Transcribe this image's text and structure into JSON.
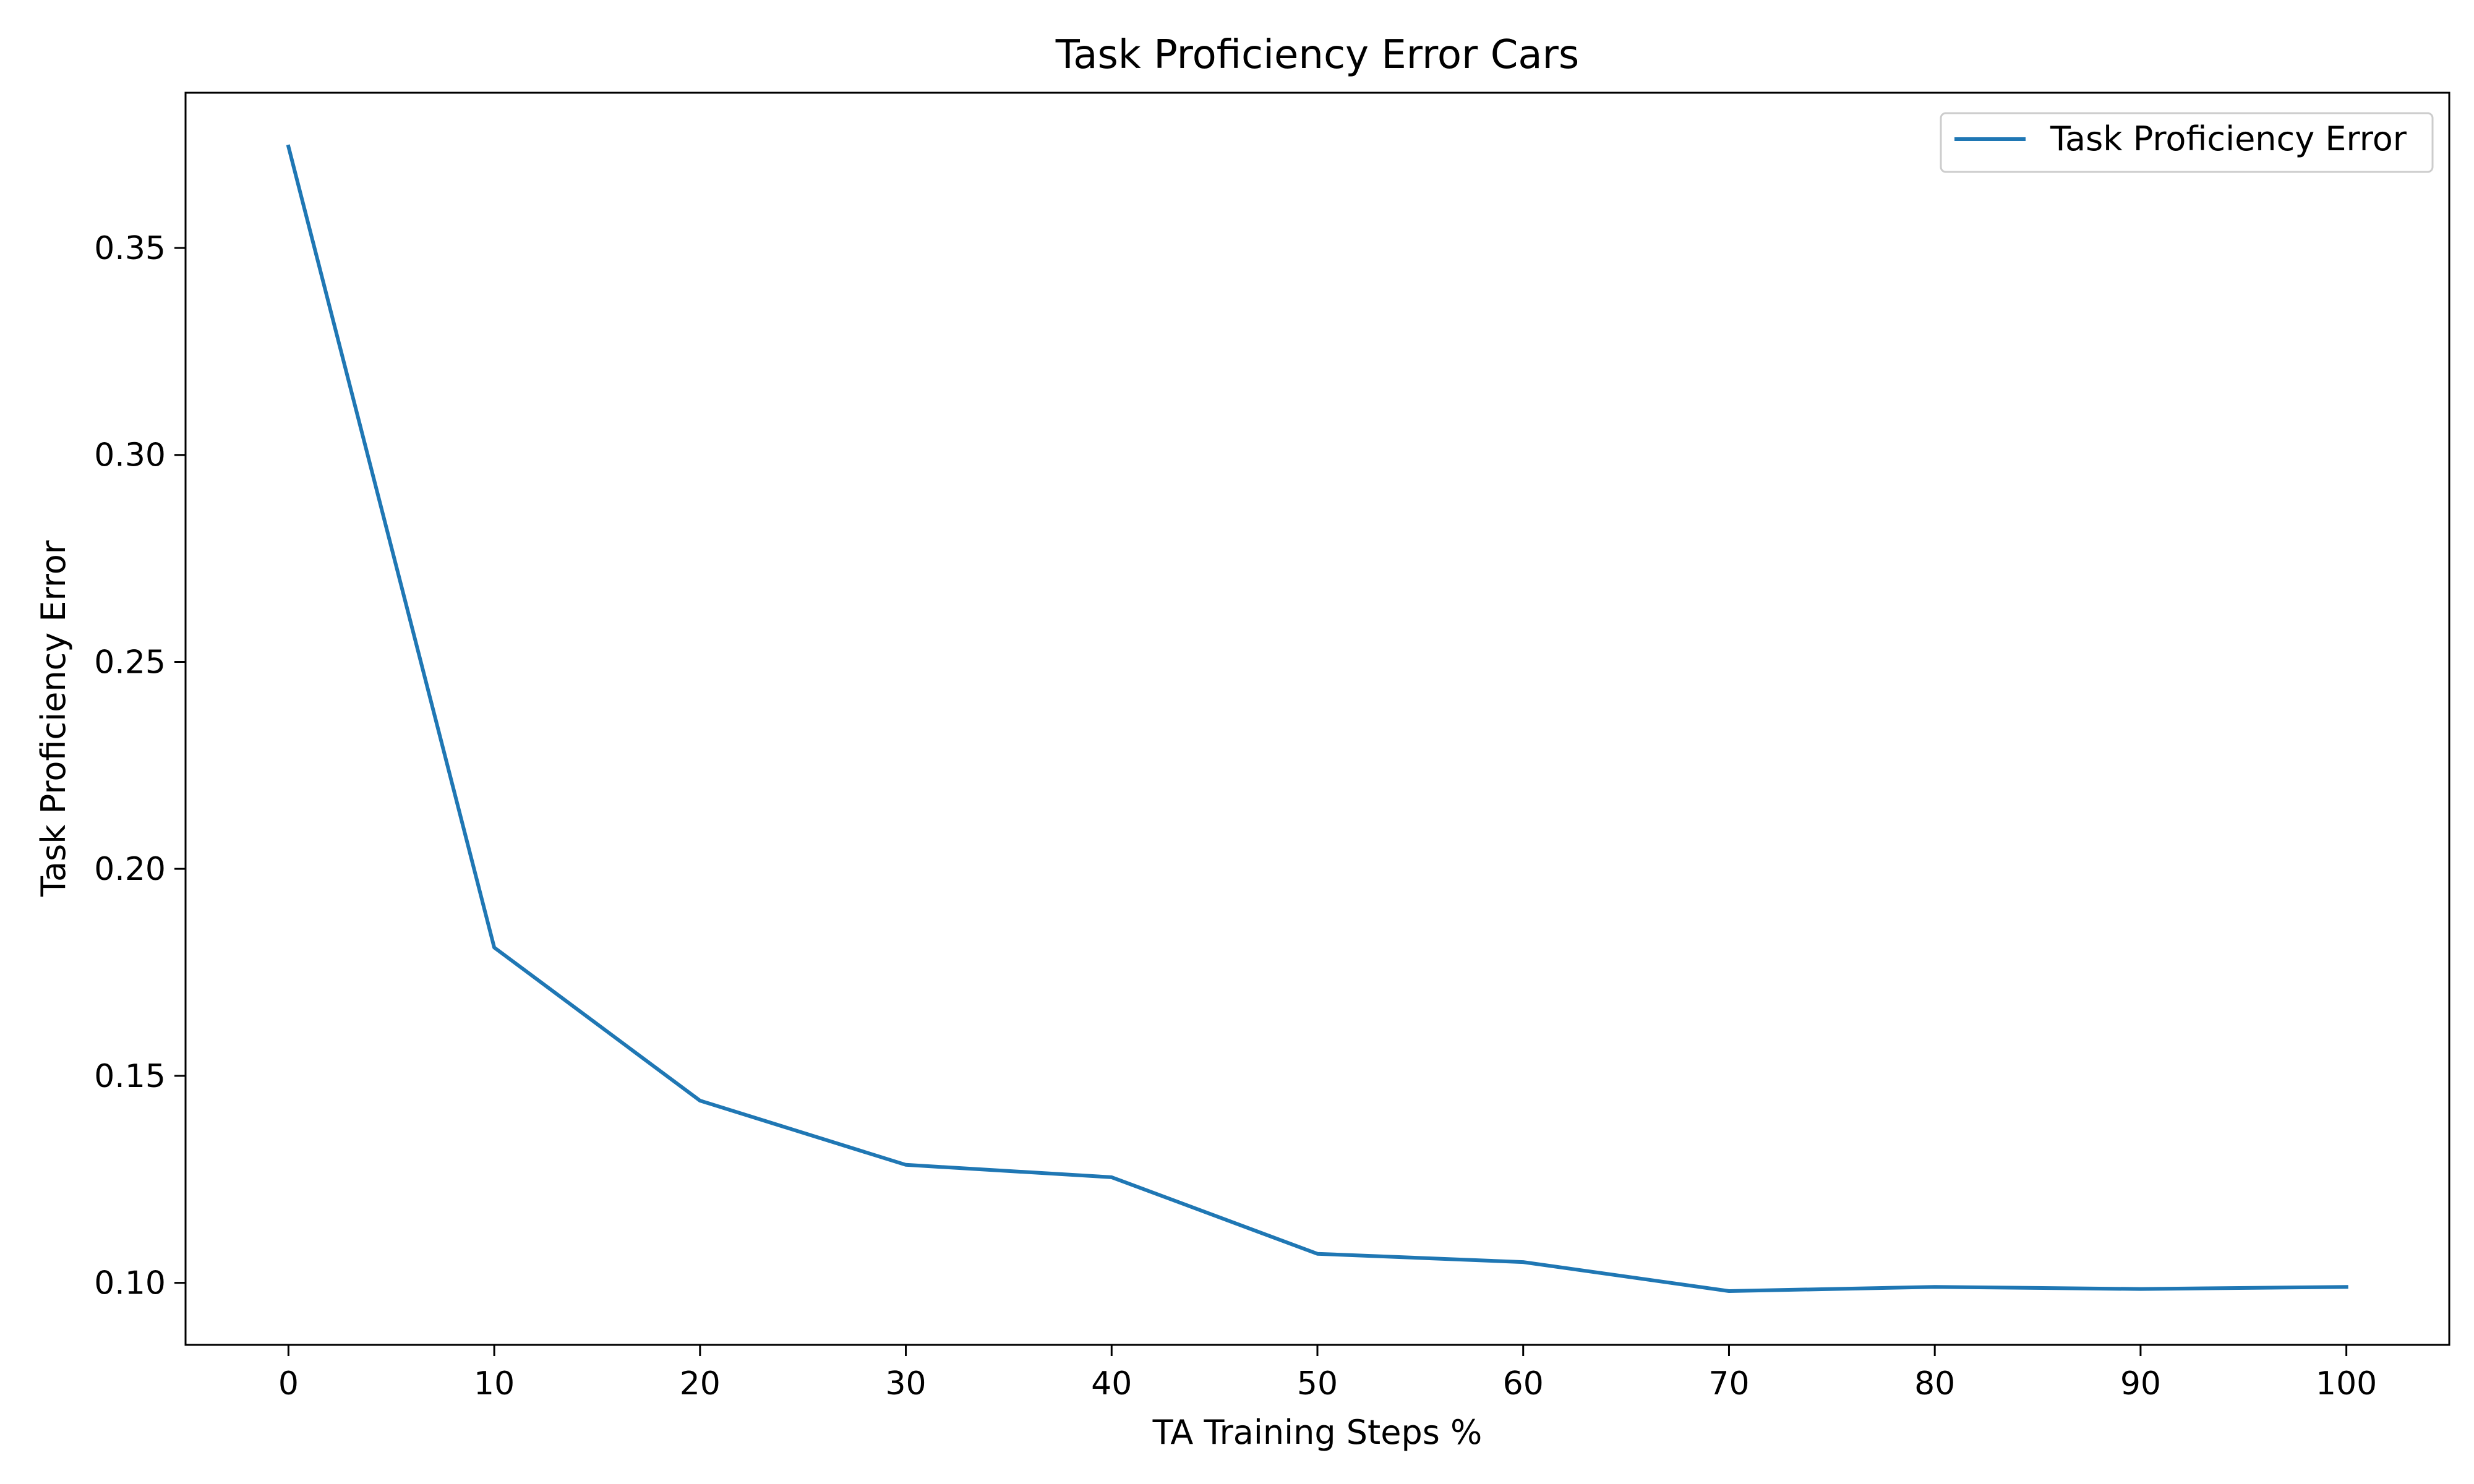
{
  "chart_data": {
    "type": "line",
    "title": "Task Proficiency Error Cars",
    "xlabel": "TA Training Steps %",
    "ylabel": "Task Proficiency Error",
    "xlim": [
      -5,
      105
    ],
    "ylim": [
      0.085,
      0.3875
    ],
    "xticks": [
      0,
      10,
      20,
      30,
      40,
      50,
      60,
      70,
      80,
      90,
      100
    ],
    "xtick_labels": [
      "0",
      "10",
      "20",
      "30",
      "40",
      "50",
      "60",
      "70",
      "80",
      "90",
      "100"
    ],
    "yticks": [
      0.1,
      0.15,
      0.2,
      0.25,
      0.3,
      0.35
    ],
    "ytick_labels": [
      "0.10",
      "0.15",
      "0.20",
      "0.25",
      "0.30",
      "0.35"
    ],
    "grid": false,
    "legend": {
      "placement": "top-right",
      "entries": [
        "Task Proficiency Error"
      ]
    },
    "x": [
      0,
      10,
      20,
      30,
      40,
      50,
      60,
      70,
      80,
      90,
      100
    ],
    "series": [
      {
        "name": "Task Proficiency Error",
        "color": "#1f77b4",
        "values": [
          0.3745,
          0.181,
          0.144,
          0.1285,
          0.1255,
          0.107,
          0.105,
          0.098,
          0.099,
          0.0985,
          0.099
        ]
      }
    ]
  }
}
